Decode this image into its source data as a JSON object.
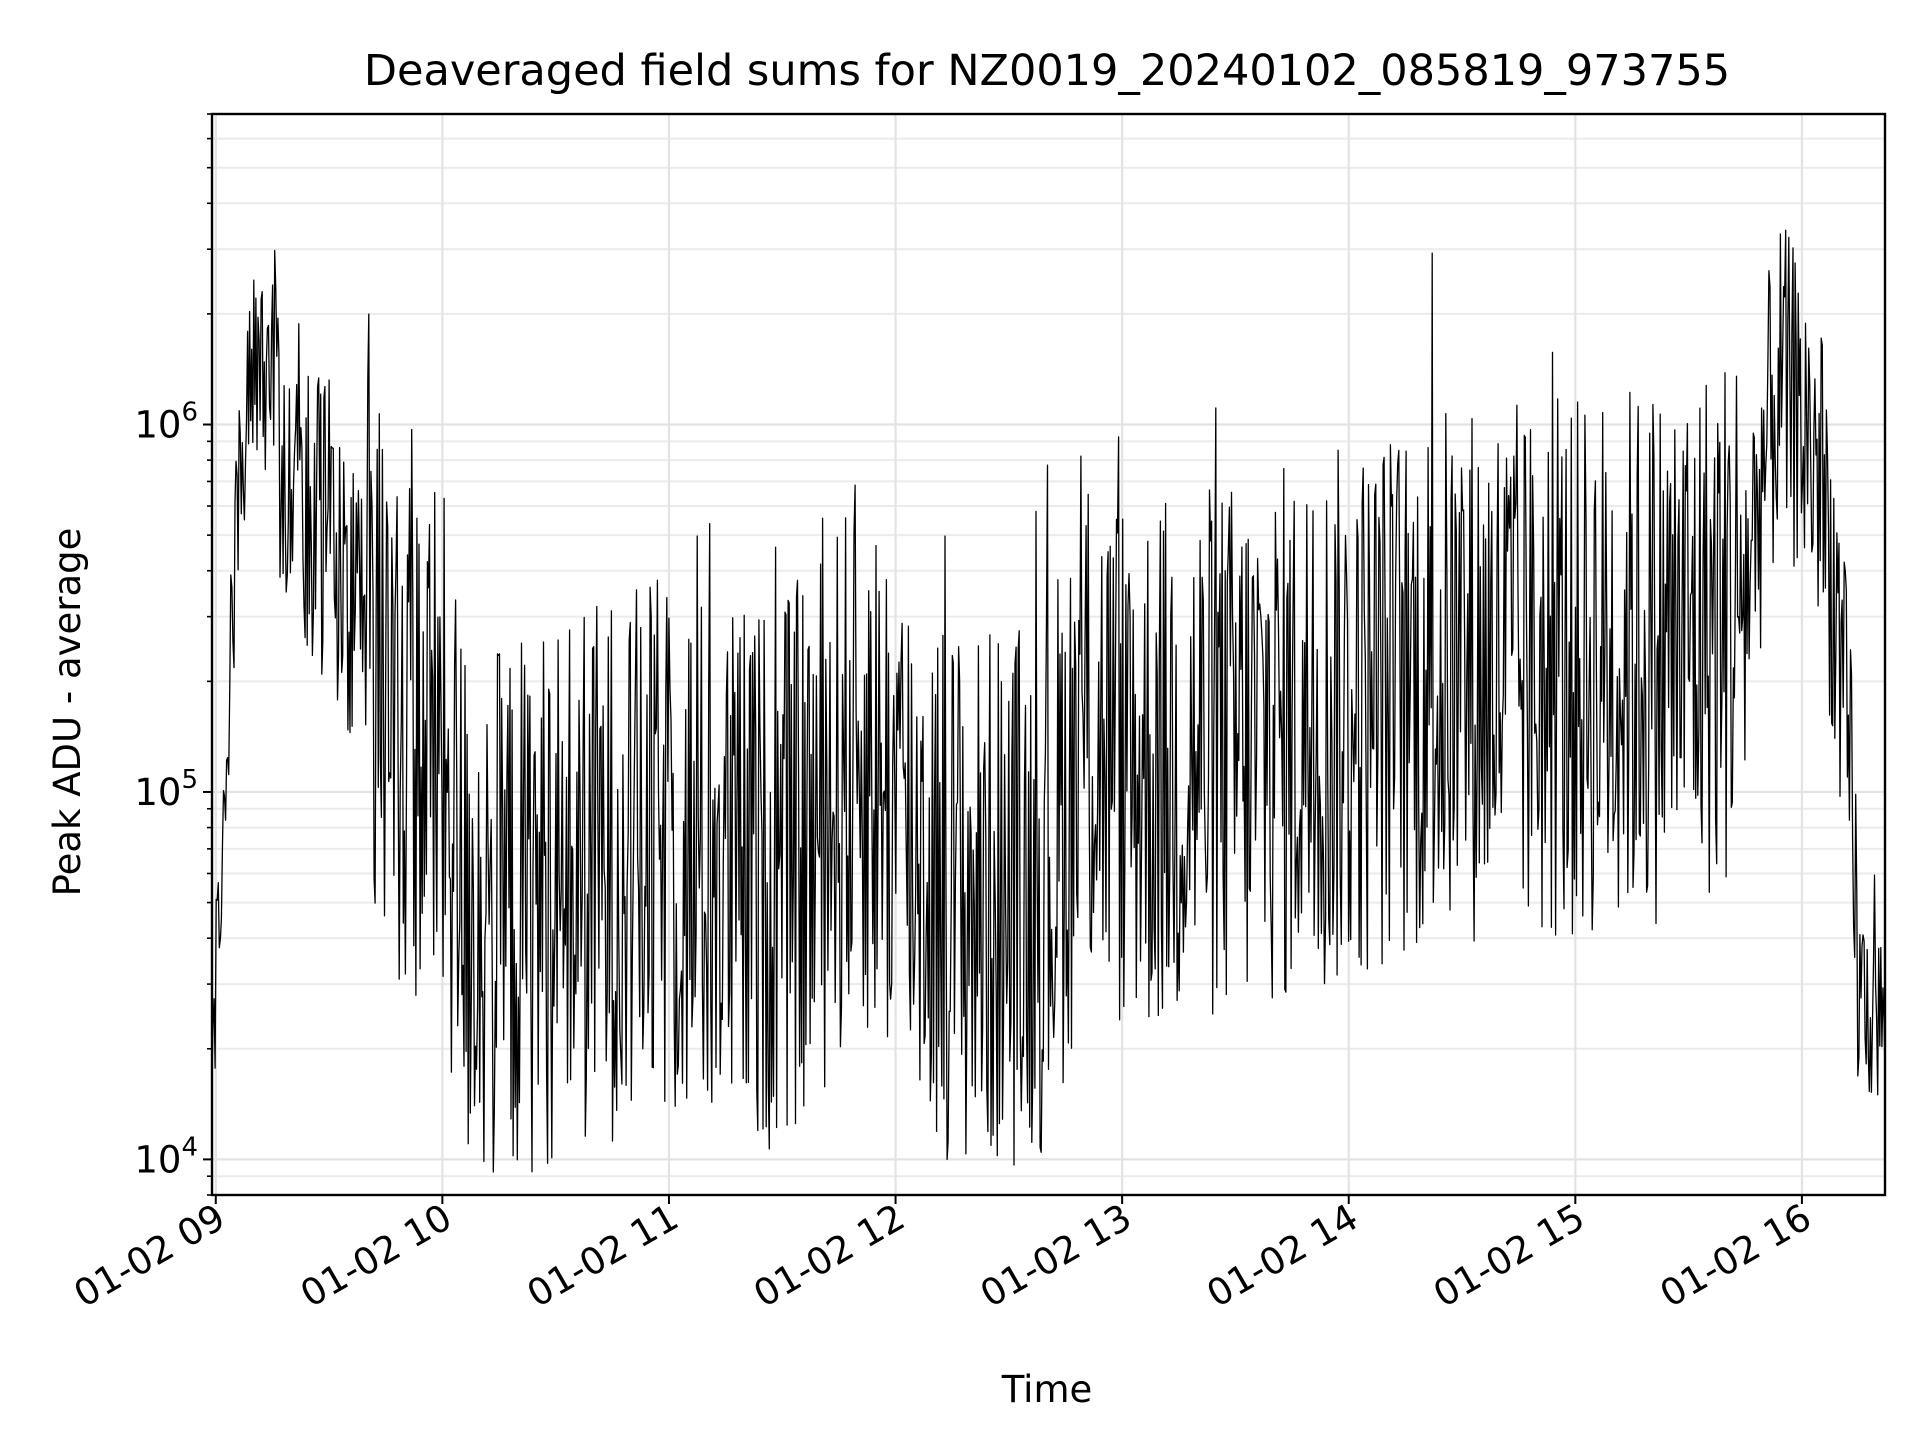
{
  "chart_data": {
    "type": "line",
    "title": "Deaveraged field sums for NZ0019_20240102_085819_973755",
    "xlabel": "Time",
    "ylabel": "Peak ADU - average",
    "y_scale": "log",
    "ylim": [
      8000,
      7000000
    ],
    "xlim": [
      "01-02 08:59",
      "01-02 16:22"
    ],
    "x_ticks": [
      "01-02 09",
      "01-02 10",
      "01-02 11",
      "01-02 12",
      "01-02 13",
      "01-02 14",
      "01-02 15",
      "01-02 16"
    ],
    "y_ticks": [
      {
        "base": "10",
        "exp": "4",
        "value": 10000
      },
      {
        "base": "10",
        "exp": "5",
        "value": 100000
      },
      {
        "base": "10",
        "exp": "6",
        "value": 1000000
      }
    ],
    "grid": true,
    "line_color": "#000000",
    "series": [
      {
        "points": [
          [
            "01-02 08:59",
            18000
          ],
          [
            "01-02 09:00",
            30000
          ],
          [
            "01-02 09:02",
            70000
          ],
          [
            "01-02 09:04",
            250000
          ],
          [
            "01-02 09:06",
            600000
          ],
          [
            "01-02 09:08",
            1100000
          ],
          [
            "01-02 09:10",
            1500000
          ],
          [
            "01-02 09:12",
            1300000
          ],
          [
            "01-02 09:14",
            1200000
          ],
          [
            "01-02 09:18",
            900000
          ],
          [
            "01-02 09:24",
            650000
          ],
          [
            "01-02 09:30",
            500000
          ],
          [
            "01-02 09:36",
            380000
          ],
          [
            "01-02 09:42",
            220000
          ],
          [
            "01-02 09:48",
            160000
          ],
          [
            "01-02 09:54",
            140000
          ],
          [
            "01-02 10:00",
            120000
          ],
          [
            "01-02 10:06",
            50000
          ],
          [
            "01-02 10:12",
            45000
          ],
          [
            "01-02 10:20",
            48000
          ],
          [
            "01-02 10:30",
            55000
          ],
          [
            "01-02 10:40",
            60000
          ],
          [
            "01-02 10:50",
            65000
          ],
          [
            "01-02 11:00",
            70000
          ],
          [
            "01-02 11:10",
            62000
          ],
          [
            "01-02 11:20",
            58000
          ],
          [
            "01-02 11:30",
            60000
          ],
          [
            "01-02 11:40",
            80000
          ],
          [
            "01-02 11:50",
            130000
          ],
          [
            "01-02 12:00",
            90000
          ],
          [
            "01-02 12:10",
            60000
          ],
          [
            "01-02 12:20",
            50000
          ],
          [
            "01-02 12:30",
            52000
          ],
          [
            "01-02 12:40",
            58000
          ],
          [
            "01-02 12:50",
            150000
          ],
          [
            "01-02 13:00",
            120000
          ],
          [
            "01-02 13:10",
            115000
          ],
          [
            "01-02 13:20",
            125000
          ],
          [
            "01-02 13:30",
            130000
          ],
          [
            "01-02 13:40",
            140000
          ],
          [
            "01-02 13:50",
            150000
          ],
          [
            "01-02 14:00",
            160000
          ],
          [
            "01-02 14:10",
            180000
          ],
          [
            "01-02 14:20",
            200000
          ],
          [
            "01-02 14:30",
            210000
          ],
          [
            "01-02 14:40",
            220000
          ],
          [
            "01-02 14:50",
            200000
          ],
          [
            "01-02 15:00",
            210000
          ],
          [
            "01-02 15:10",
            230000
          ],
          [
            "01-02 15:20",
            240000
          ],
          [
            "01-02 15:30",
            260000
          ],
          [
            "01-02 15:40",
            300000
          ],
          [
            "01-02 15:46",
            400000
          ],
          [
            "01-02 15:50",
            800000
          ],
          [
            "01-02 15:54",
            1300000
          ],
          [
            "01-02 15:58",
            1100000
          ],
          [
            "01-02 16:02",
            900000
          ],
          [
            "01-02 16:05",
            700000
          ],
          [
            "01-02 16:08",
            400000
          ],
          [
            "01-02 16:11",
            170000
          ],
          [
            "01-02 16:13",
            90000
          ],
          [
            "01-02 16:15",
            30000
          ],
          [
            "01-02 16:18",
            25000
          ],
          [
            "01-02 16:22",
            24000
          ]
        ]
      }
    ]
  }
}
